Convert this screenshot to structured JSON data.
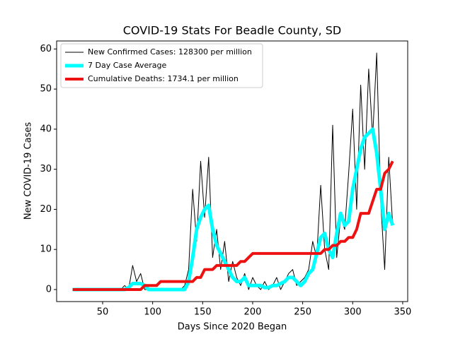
{
  "chart_data": {
    "type": "line",
    "title": "COVID-19 Stats For Beadle County, SD",
    "x_label": "Days Since 2020 Began",
    "y_label": "New COVID-19 Cases",
    "x": [
      20,
      24,
      28,
      32,
      36,
      40,
      44,
      48,
      52,
      56,
      60,
      64,
      68,
      72,
      76,
      80,
      84,
      88,
      92,
      96,
      100,
      104,
      108,
      112,
      116,
      120,
      124,
      128,
      132,
      136,
      140,
      144,
      148,
      152,
      156,
      160,
      164,
      168,
      172,
      176,
      180,
      184,
      188,
      192,
      196,
      200,
      204,
      208,
      212,
      216,
      220,
      224,
      228,
      232,
      236,
      240,
      244,
      248,
      252,
      256,
      260,
      264,
      268,
      272,
      276,
      280,
      284,
      288,
      292,
      296,
      300,
      304,
      308,
      312,
      316,
      320,
      324,
      328,
      332,
      336,
      340
    ],
    "series": [
      {
        "name": "New Confirmed Cases: 128300 per million",
        "color": "#000000",
        "width": 1,
        "values": [
          0,
          0,
          0,
          0,
          0,
          0,
          0,
          0,
          0,
          0,
          0,
          0,
          0,
          1,
          0,
          6,
          2,
          4,
          0,
          0,
          0,
          0,
          0,
          0,
          0,
          0,
          0,
          0,
          1,
          5,
          25,
          12,
          32,
          18,
          33,
          8,
          15,
          5,
          12,
          2,
          7,
          3,
          1,
          4,
          0,
          3,
          1,
          0,
          2,
          0,
          1,
          3,
          0,
          2,
          4,
          5,
          1,
          2,
          3,
          5,
          12,
          8,
          26,
          10,
          5,
          41,
          8,
          18,
          15,
          29,
          45,
          20,
          51,
          30,
          55,
          38,
          59,
          22,
          5,
          33,
          16
        ]
      },
      {
        "name": "7 Day Case Average",
        "color": "#00ffff",
        "width": 5,
        "values": [
          0,
          0,
          0,
          0,
          0,
          0,
          0,
          0,
          0,
          0,
          0,
          0,
          0,
          0,
          0.5,
          1.5,
          1.5,
          1.5,
          1,
          0,
          0,
          0,
          0,
          0,
          0,
          0,
          0,
          0,
          0,
          2,
          8,
          15,
          18,
          20,
          21,
          15,
          11,
          9,
          7,
          5,
          3,
          2,
          2,
          3,
          1,
          1,
          1,
          1,
          0.5,
          0.5,
          1,
          1,
          1.5,
          2,
          3,
          3,
          2,
          1,
          2,
          4,
          5,
          9,
          13,
          14,
          10,
          8,
          14,
          19,
          16,
          17,
          25,
          30,
          35,
          38,
          39,
          40,
          34,
          25,
          15,
          19,
          16
        ]
      },
      {
        "name": "Cumulative Deaths: 1734.1 per million",
        "color": "#ee1111",
        "width": 4,
        "values": [
          0,
          0,
          0,
          0,
          0,
          0,
          0,
          0,
          0,
          0,
          0,
          0,
          0,
          0,
          0,
          0,
          0,
          0,
          1,
          1,
          1,
          1,
          2,
          2,
          2,
          2,
          2,
          2,
          2,
          2,
          2,
          3,
          3,
          5,
          5,
          5,
          6,
          6,
          6,
          6,
          6,
          6,
          7,
          7,
          8,
          9,
          9,
          9,
          9,
          9,
          9,
          9,
          9,
          9,
          9,
          9,
          9,
          9,
          9,
          9,
          9,
          9,
          9,
          10,
          10,
          11,
          11,
          12,
          12,
          13,
          13,
          15,
          19,
          19,
          19,
          22,
          25,
          25,
          29,
          30,
          32
        ]
      }
    ],
    "xlim": [
      4,
      355
    ],
    "ylim": [
      -3,
      62
    ],
    "xticks": [
      50,
      100,
      150,
      200,
      250,
      300,
      350
    ],
    "yticks": [
      0,
      10,
      20,
      30,
      40,
      50,
      60
    ],
    "legend": "upper left"
  }
}
